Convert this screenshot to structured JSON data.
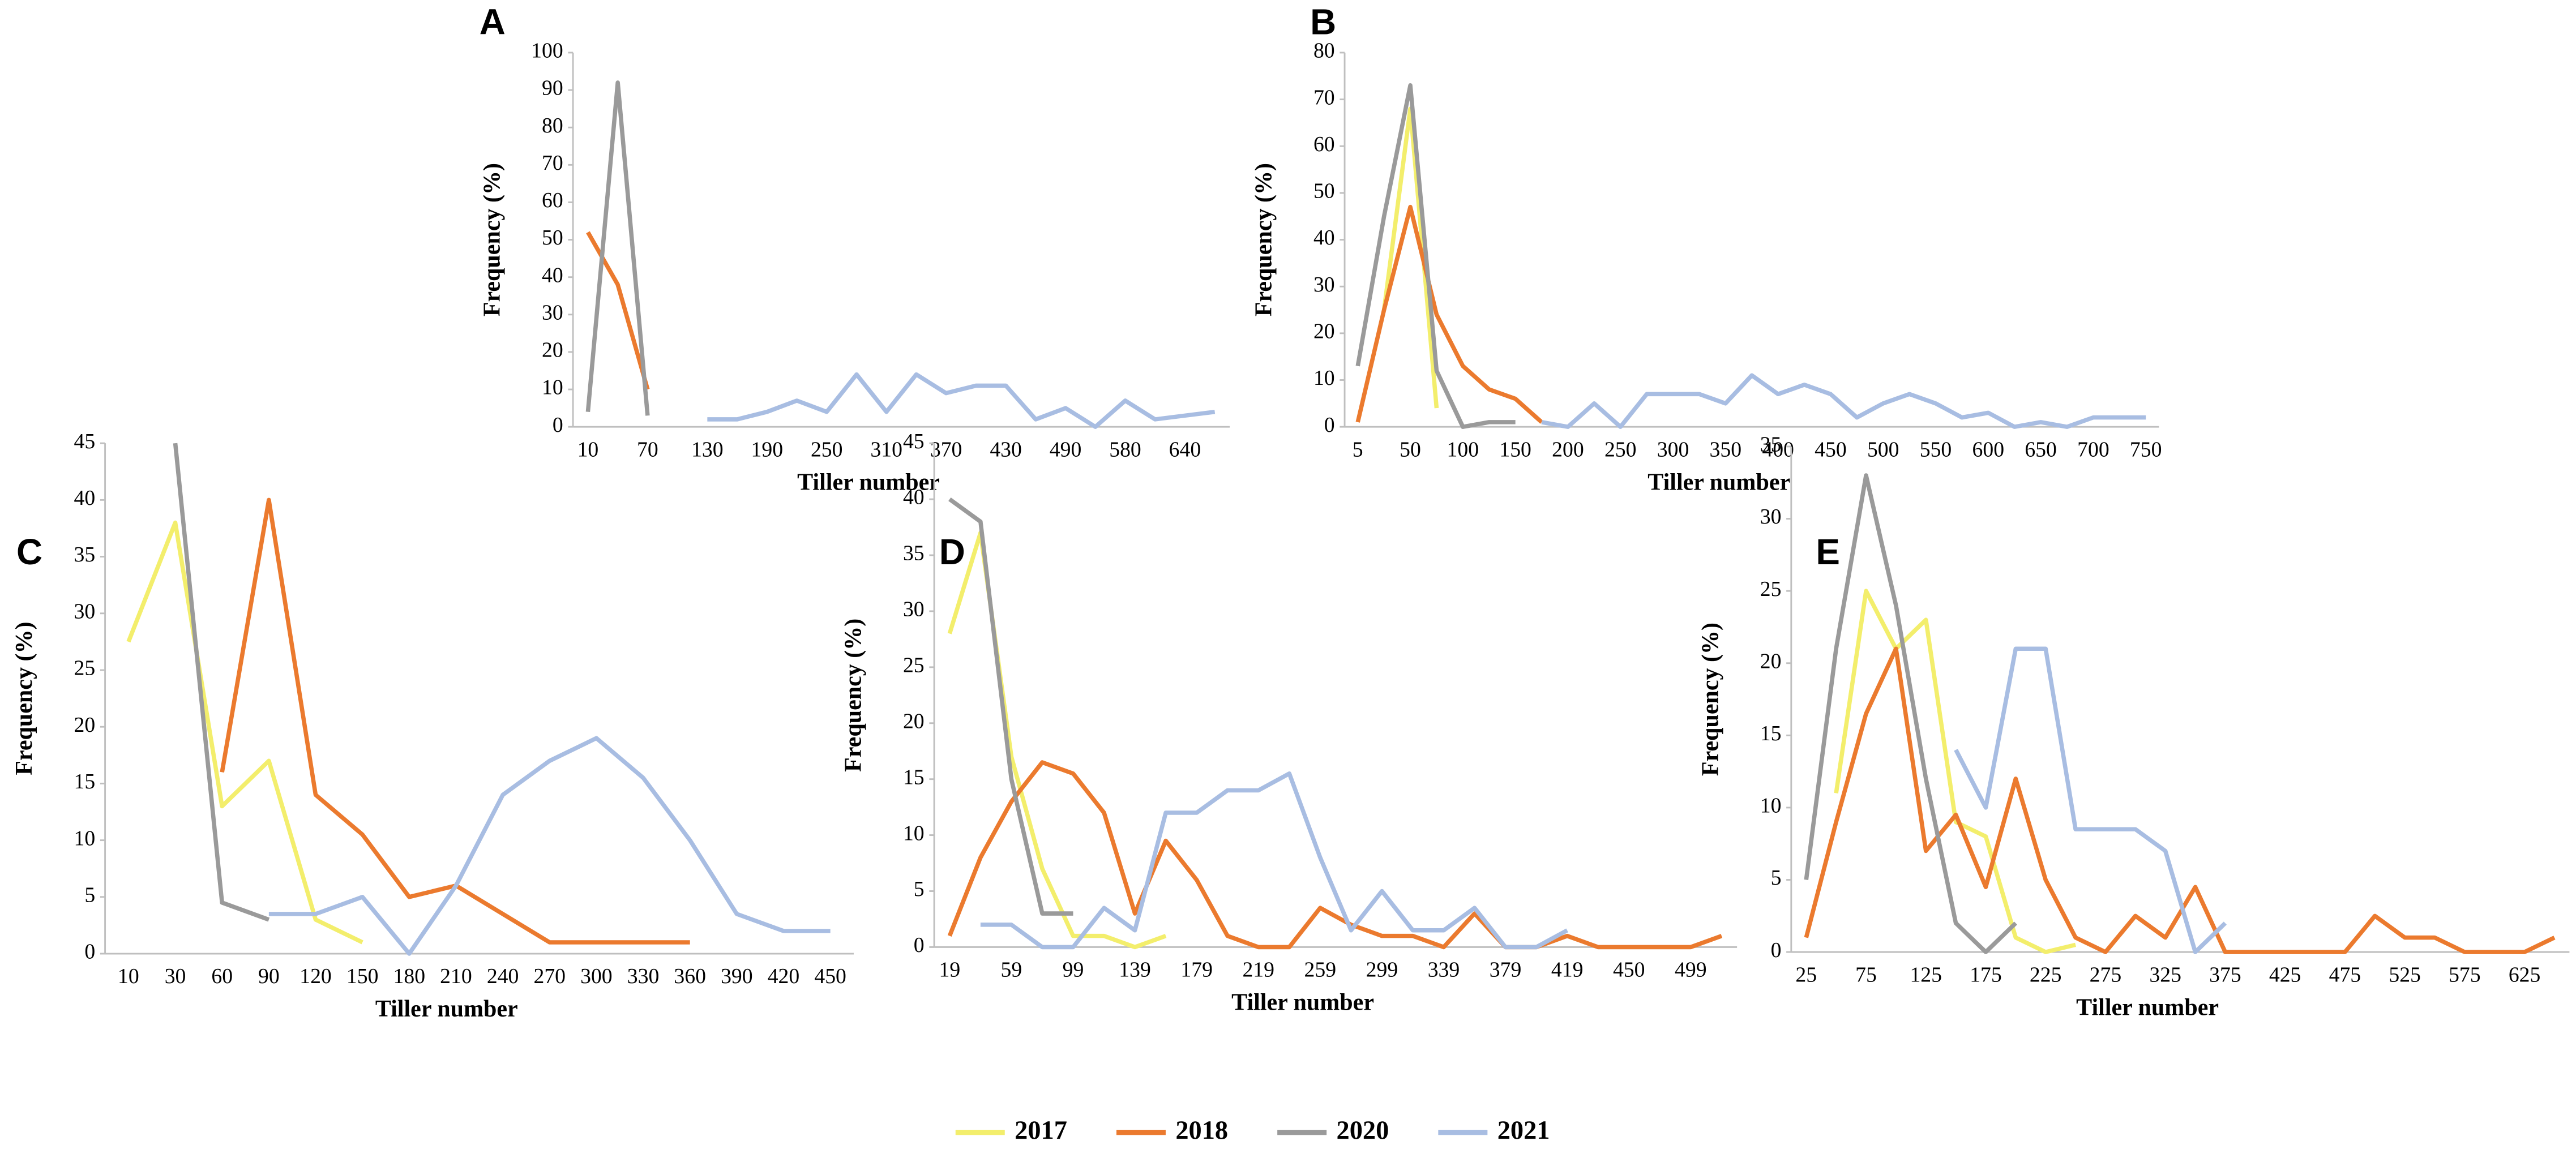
{
  "legend": [
    {
      "name": "2017",
      "color": "#f3ee6c"
    },
    {
      "name": "2018",
      "color": "#eb7a2e"
    },
    {
      "name": "2020",
      "color": "#9a9a9a"
    },
    {
      "name": "2021",
      "color": "#a8bde2"
    }
  ],
  "chart_data": [
    {
      "type": "line",
      "label": "A",
      "x_label": "Tiller number",
      "y_label": "Frequency (%)",
      "categories": [
        10,
        null,
        70,
        null,
        130,
        null,
        190,
        null,
        250,
        null,
        310,
        null,
        370,
        null,
        430,
        null,
        490,
        null,
        580,
        null,
        640,
        null
      ],
      "series": [
        {
          "values": [
            null,
            null,
            null,
            null,
            null,
            null,
            null,
            null,
            null,
            null,
            null,
            null,
            null,
            null,
            null,
            null,
            null,
            null,
            null,
            null,
            null,
            null
          ]
        },
        {
          "values": [
            52,
            38,
            10,
            null,
            null,
            null,
            null,
            null,
            null,
            null,
            null,
            null,
            null,
            null,
            null,
            null,
            null,
            null,
            null,
            null,
            null,
            null
          ]
        },
        {
          "values": [
            4,
            92,
            3,
            null,
            null,
            null,
            null,
            null,
            null,
            null,
            null,
            null,
            null,
            null,
            null,
            null,
            null,
            null,
            null,
            null,
            null,
            null
          ]
        },
        {
          "values": [
            null,
            null,
            null,
            null,
            2,
            2,
            4,
            7,
            4,
            14,
            4,
            14,
            9,
            11,
            11,
            2,
            5,
            0,
            7,
            2,
            3,
            4
          ]
        }
      ],
      "ylim": [
        0,
        100
      ],
      "yticks": [
        0,
        10,
        20,
        30,
        40,
        50,
        60,
        70,
        80,
        90,
        100
      ]
    },
    {
      "type": "line",
      "label": "B",
      "x_label": "Tiller number",
      "y_label": "Frequency (%)",
      "categories": [
        5,
        null,
        50,
        null,
        100,
        null,
        150,
        null,
        200,
        null,
        250,
        null,
        300,
        null,
        350,
        null,
        400,
        null,
        450,
        null,
        500,
        null,
        550,
        null,
        600,
        null,
        650,
        null,
        700,
        null,
        750
      ],
      "series": [
        {
          "values": [
            null,
            25,
            68,
            4,
            null,
            null,
            null,
            null,
            null,
            null,
            null,
            null,
            null,
            null,
            null,
            null,
            null,
            null,
            null,
            null,
            null,
            null,
            null,
            null,
            null,
            null,
            null,
            null,
            null,
            null,
            null
          ]
        },
        {
          "values": [
            1,
            25,
            47,
            24,
            13,
            8,
            6,
            1,
            null,
            null,
            null,
            null,
            null,
            null,
            null,
            null,
            null,
            null,
            null,
            null,
            null,
            null,
            null,
            null,
            null,
            null,
            null,
            null,
            null,
            null,
            null
          ]
        },
        {
          "values": [
            13,
            45,
            73,
            12,
            0,
            1,
            1,
            null,
            null,
            null,
            null,
            null,
            null,
            null,
            null,
            null,
            null,
            null,
            null,
            null,
            null,
            null,
            null,
            null,
            null,
            null,
            null,
            null,
            null,
            null,
            null
          ]
        },
        {
          "values": [
            null,
            null,
            null,
            null,
            null,
            null,
            null,
            1,
            0,
            5,
            0,
            7,
            7,
            7,
            5,
            11,
            7,
            9,
            7,
            2,
            5,
            7,
            5,
            2,
            3,
            0,
            1,
            0,
            2,
            2,
            2
          ]
        }
      ],
      "ylim": [
        0,
        80
      ],
      "yticks": [
        0,
        10,
        20,
        30,
        40,
        50,
        60,
        70,
        80
      ]
    },
    {
      "type": "line",
      "label": "C",
      "x_label": "Tiller number",
      "y_label": "Frequency (%)",
      "categories": [
        10,
        30,
        60,
        90,
        120,
        150,
        180,
        210,
        240,
        270,
        300,
        330,
        360,
        390,
        420,
        450
      ],
      "series": [
        {
          "values": [
            27.5,
            38,
            13,
            17,
            3,
            1,
            null,
            null,
            null,
            null,
            null,
            null,
            null,
            null,
            null,
            null
          ]
        },
        {
          "values": [
            null,
            null,
            16,
            40,
            14,
            10.5,
            5,
            6,
            3.5,
            1,
            1,
            1,
            1,
            null,
            null,
            null
          ]
        },
        {
          "values": [
            null,
            45,
            4.5,
            3,
            null,
            null,
            null,
            null,
            null,
            null,
            null,
            null,
            null,
            null,
            null,
            null
          ]
        },
        {
          "values": [
            null,
            null,
            null,
            3.5,
            3.5,
            5,
            0,
            6,
            14,
            17,
            19,
            15.5,
            10,
            3.5,
            2,
            2
          ]
        }
      ],
      "ylim": [
        0,
        45
      ],
      "yticks": [
        0,
        5,
        10,
        15,
        20,
        25,
        30,
        35,
        40,
        45
      ]
    },
    {
      "type": "line",
      "label": "D",
      "x_label": "Tiller number",
      "y_label": "Frequency (%)",
      "categories": [
        19,
        null,
        59,
        null,
        99,
        null,
        139,
        null,
        179,
        null,
        219,
        null,
        259,
        null,
        299,
        null,
        339,
        null,
        379,
        null,
        419,
        null,
        450,
        null,
        499,
        null
      ],
      "series": [
        {
          "values": [
            28,
            37,
            17,
            7,
            1,
            1,
            0,
            1,
            null,
            null,
            null,
            null,
            null,
            null,
            null,
            null,
            null,
            null,
            null,
            null,
            null,
            null,
            null,
            null,
            null,
            null
          ]
        },
        {
          "values": [
            1,
            8,
            13,
            16.5,
            15.5,
            12,
            3,
            9.5,
            6,
            1,
            0,
            0,
            3.5,
            2,
            1,
            1,
            0,
            3,
            0,
            0,
            1,
            0,
            0,
            0,
            0,
            1
          ]
        },
        {
          "values": [
            40,
            38,
            15,
            3,
            3,
            null,
            null,
            null,
            null,
            null,
            null,
            null,
            null,
            null,
            null,
            null,
            null,
            null,
            null,
            null,
            null,
            null,
            null,
            null,
            null,
            null
          ]
        },
        {
          "values": [
            null,
            2,
            2,
            0,
            0,
            3.5,
            1.5,
            12,
            12,
            14,
            14,
            15.5,
            8,
            1.5,
            5,
            1.5,
            1.5,
            3.5,
            0,
            0,
            1.5,
            null,
            null,
            null,
            null,
            null
          ]
        }
      ],
      "ylim": [
        0,
        45
      ],
      "yticks": [
        0,
        5,
        10,
        15,
        20,
        25,
        30,
        35,
        40,
        45
      ]
    },
    {
      "type": "line",
      "label": "E",
      "x_label": "Tiller number",
      "y_label": "Frequency (%)",
      "categories": [
        25,
        null,
        75,
        null,
        125,
        null,
        175,
        null,
        225,
        null,
        275,
        null,
        325,
        null,
        375,
        null,
        425,
        null,
        475,
        null,
        525,
        null,
        575,
        null,
        625,
        null
      ],
      "series": [
        {
          "values": [
            null,
            11,
            25,
            21,
            23,
            9,
            8,
            1,
            0,
            0.5,
            null,
            null,
            null,
            null,
            null,
            null,
            null,
            null,
            null,
            null,
            null,
            null,
            null,
            null,
            null,
            null
          ]
        },
        {
          "values": [
            1,
            9,
            16.5,
            21,
            7,
            9.5,
            4.5,
            12,
            5,
            1,
            0,
            2.5,
            1,
            4.5,
            0,
            0,
            0,
            0,
            0,
            2.5,
            1,
            1,
            0,
            0,
            0,
            1
          ]
        },
        {
          "values": [
            5,
            21,
            33,
            24,
            12,
            2,
            0,
            2,
            null,
            null,
            null,
            null,
            null,
            null,
            null,
            null,
            null,
            null,
            null,
            null,
            null,
            null,
            null,
            null,
            null,
            null
          ]
        },
        {
          "values": [
            null,
            null,
            null,
            null,
            null,
            14,
            10,
            21,
            21,
            8.5,
            8.5,
            8.5,
            7,
            0,
            2,
            null,
            null,
            null,
            null,
            null,
            null,
            null,
            null,
            null,
            null,
            null
          ]
        }
      ],
      "ylim": [
        0,
        35
      ],
      "yticks": [
        0,
        5,
        10,
        15,
        20,
        25,
        30,
        35
      ]
    }
  ]
}
